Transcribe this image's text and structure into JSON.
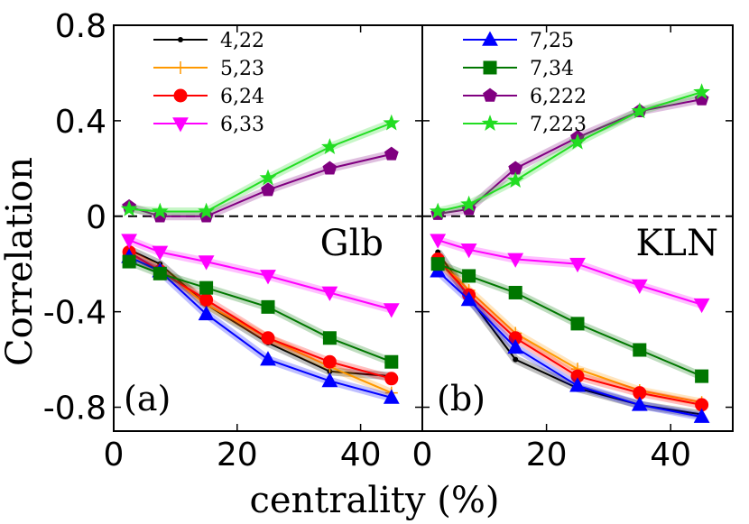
{
  "figure": {
    "ylabel": "Correlation",
    "xlabel": "centrality (%)"
  },
  "chart_data": [
    {
      "type": "line",
      "panel_label": "(a)",
      "model_label": "Glb",
      "xlim": [
        0,
        50
      ],
      "ylim": [
        -0.9,
        0.8
      ],
      "xticks": [
        "0",
        "20",
        "40"
      ],
      "yticks": [
        "0.8",
        "0.4",
        "0",
        "-0.4",
        "-0.8"
      ],
      "ytick_values": [
        0.8,
        0.4,
        0,
        -0.4,
        -0.8
      ],
      "xtick_values": [
        0,
        20,
        40
      ],
      "x": [
        2.5,
        7.5,
        15,
        25,
        35,
        45
      ],
      "series": [
        {
          "name": "4,22",
          "color": "#000000",
          "marker": "dot",
          "values": [
            -0.14,
            -0.2,
            -0.37,
            -0.53,
            -0.65,
            -0.67
          ]
        },
        {
          "name": "5,23",
          "color": "#ff9900",
          "marker": "plus",
          "values": [
            -0.16,
            -0.22,
            -0.37,
            -0.51,
            -0.63,
            -0.74
          ]
        },
        {
          "name": "6,24",
          "color": "#ff0000",
          "marker": "circle",
          "values": [
            -0.15,
            -0.23,
            -0.35,
            -0.51,
            -0.61,
            -0.68
          ]
        },
        {
          "name": "6,33",
          "color": "#ff00ff",
          "marker": "triangle-down",
          "values": [
            -0.1,
            -0.15,
            -0.19,
            -0.25,
            -0.32,
            -0.39
          ]
        },
        {
          "name": "7,25",
          "color": "#0000ff",
          "marker": "triangle-up",
          "values": [
            -0.17,
            -0.23,
            -0.41,
            -0.6,
            -0.69,
            -0.76
          ]
        },
        {
          "name": "7,34",
          "color": "#007700",
          "marker": "square",
          "values": [
            -0.19,
            -0.24,
            -0.3,
            -0.38,
            -0.51,
            -0.61
          ]
        },
        {
          "name": "6,222",
          "color": "#800080",
          "marker": "pentagon",
          "values": [
            0.04,
            0.0,
            0.0,
            0.11,
            0.2,
            0.26
          ]
        },
        {
          "name": "7,223",
          "color": "#22dd22",
          "marker": "star",
          "values": [
            0.03,
            0.02,
            0.02,
            0.16,
            0.29,
            0.39
          ]
        }
      ],
      "legend": [
        "4,22",
        "5,23",
        "6,24",
        "6,33"
      ]
    },
    {
      "type": "line",
      "panel_label": "(b)",
      "model_label": "KLN",
      "xlim": [
        0,
        50
      ],
      "ylim": [
        -0.9,
        0.8
      ],
      "xticks": [
        "0",
        "20",
        "40"
      ],
      "xtick_values": [
        0,
        20,
        40
      ],
      "x": [
        2.5,
        7.5,
        15,
        25,
        35,
        45
      ],
      "series": [
        {
          "name": "4,22",
          "color": "#000000",
          "marker": "dot",
          "values": [
            -0.15,
            -0.34,
            -0.6,
            -0.72,
            -0.79,
            -0.83
          ]
        },
        {
          "name": "5,23",
          "color": "#ff9900",
          "marker": "plus",
          "values": [
            -0.18,
            -0.31,
            -0.49,
            -0.64,
            -0.73,
            -0.78
          ]
        },
        {
          "name": "6,24",
          "color": "#ff0000",
          "marker": "circle",
          "values": [
            -0.18,
            -0.33,
            -0.51,
            -0.67,
            -0.74,
            -0.79
          ]
        },
        {
          "name": "6,33",
          "color": "#ff00ff",
          "marker": "triangle-down",
          "values": [
            -0.1,
            -0.14,
            -0.18,
            -0.2,
            -0.29,
            -0.37
          ]
        },
        {
          "name": "7,25",
          "color": "#0000ff",
          "marker": "triangle-up",
          "values": [
            -0.23,
            -0.35,
            -0.55,
            -0.71,
            -0.79,
            -0.84
          ]
        },
        {
          "name": "7,34",
          "color": "#007700",
          "marker": "square",
          "values": [
            -0.2,
            -0.25,
            -0.32,
            -0.45,
            -0.56,
            -0.67
          ]
        },
        {
          "name": "6,222",
          "color": "#800080",
          "marker": "pentagon",
          "values": [
            0.01,
            0.03,
            0.2,
            0.33,
            0.44,
            0.49
          ]
        },
        {
          "name": "7,223",
          "color": "#22dd22",
          "marker": "star",
          "values": [
            0.02,
            0.05,
            0.15,
            0.31,
            0.44,
            0.52
          ]
        }
      ],
      "legend": [
        "7,25",
        "7,34",
        "6,222",
        "7,223"
      ]
    }
  ]
}
